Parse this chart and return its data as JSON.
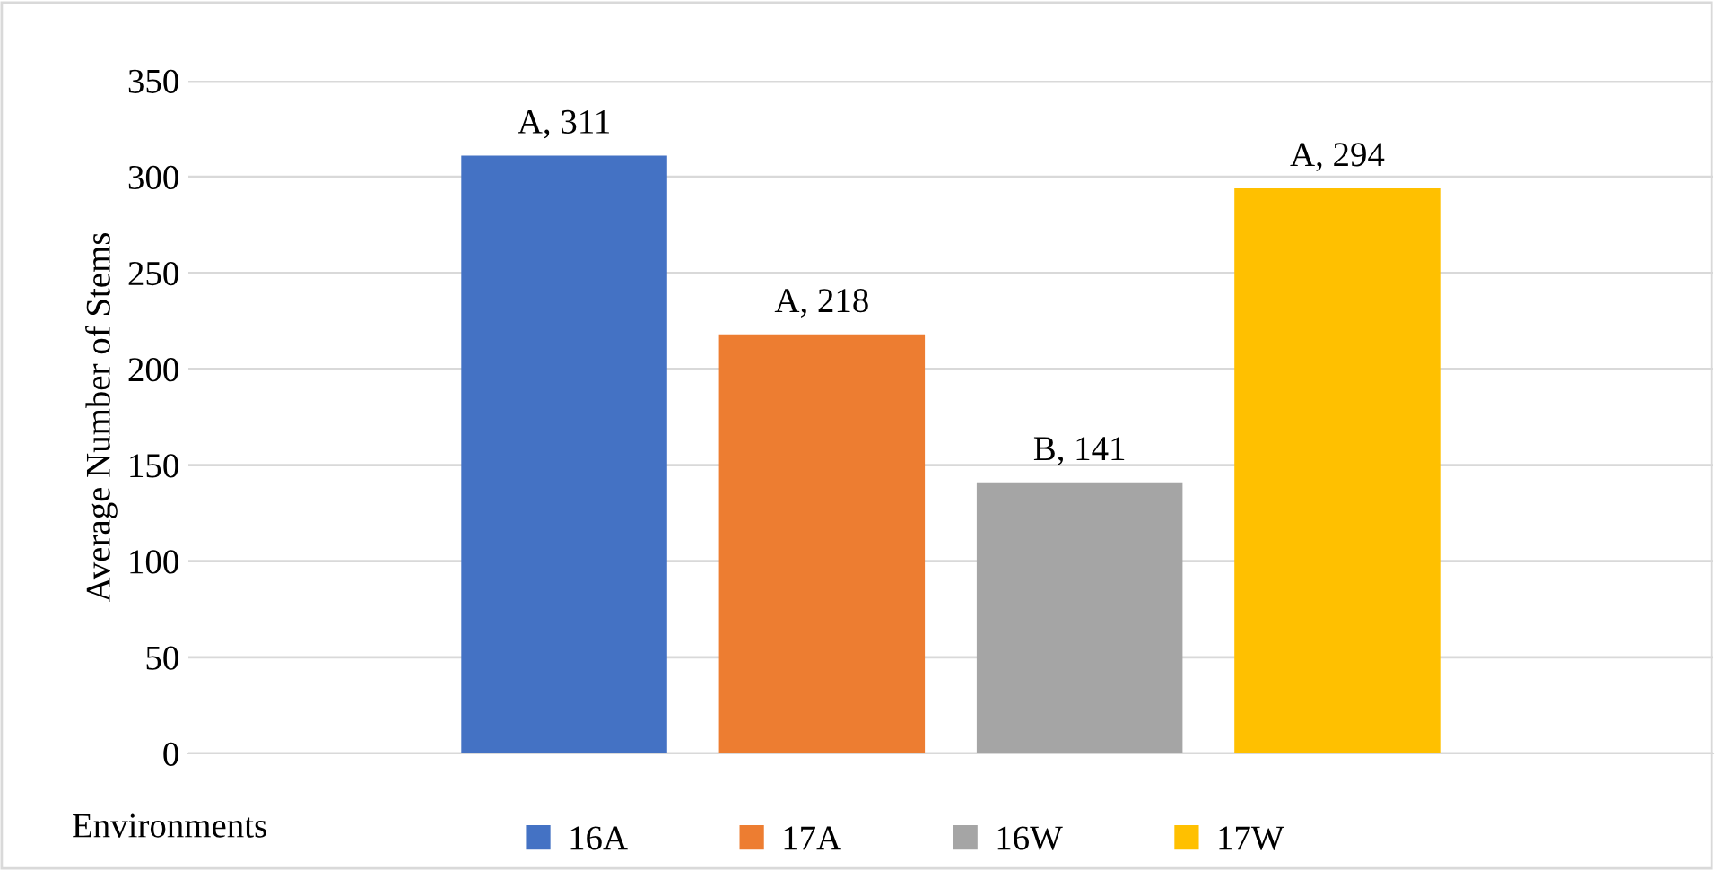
{
  "chart_data": {
    "type": "bar",
    "ylabel": "Average Number of Stems",
    "legend_title": "Environments",
    "categories": [
      null
    ],
    "series": [
      {
        "name": "16A",
        "color": "#4472c4",
        "values": [
          311
        ],
        "value_labels": [
          "A, 311"
        ]
      },
      {
        "name": "17A",
        "color": "#ed7d31",
        "values": [
          218
        ],
        "value_labels": [
          "A, 218"
        ]
      },
      {
        "name": "16W",
        "color": "#a5a5a5",
        "values": [
          141
        ],
        "value_labels": [
          "B, 141"
        ]
      },
      {
        "name": "17W",
        "color": "#ffc000",
        "values": [
          294
        ],
        "value_labels": [
          "A, 294"
        ]
      }
    ],
    "ylim": [
      0,
      350
    ],
    "yticks": [
      0,
      50,
      100,
      150,
      200,
      250,
      300,
      350
    ],
    "grid": "y",
    "legend": "bottom"
  }
}
